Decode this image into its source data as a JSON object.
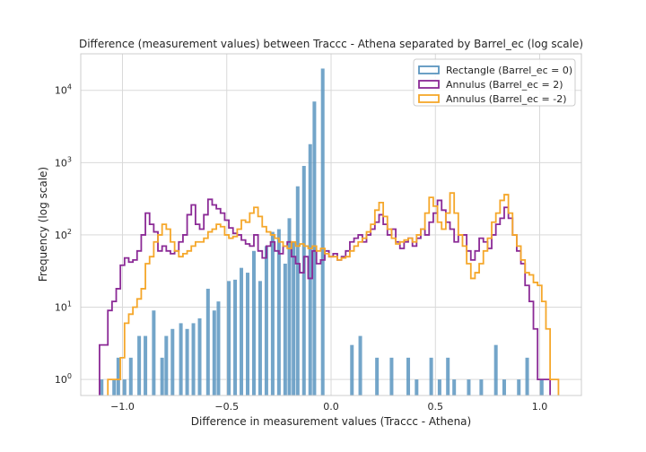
{
  "chart_data": {
    "type": "bar",
    "title": "Difference (measurement values) between Traccc - Athena separated by Barrel_ec (log scale)",
    "xlabel": "Difference in measurement values (Traccc - Athena)",
    "ylabel": "Frequency (log scale)",
    "xlim": [
      -1.2,
      1.2
    ],
    "ylim": [
      0.6,
      32000
    ],
    "yscale": "log",
    "grid": true,
    "legend_position": "top-right",
    "x_ticks": [
      {
        "value": -1.0,
        "label": "−1.0"
      },
      {
        "value": -0.5,
        "label": "−0.5"
      },
      {
        "value": 0.0,
        "label": "0.0"
      },
      {
        "value": 0.5,
        "label": "0.5"
      },
      {
        "value": 1.0,
        "label": "1.0"
      }
    ],
    "y_ticks": [
      {
        "value": 1,
        "base": "10",
        "exp": "0"
      },
      {
        "value": 10,
        "base": "10",
        "exp": "1"
      },
      {
        "value": 100,
        "base": "10",
        "exp": "2"
      },
      {
        "value": 1000,
        "base": "10",
        "exp": "3"
      },
      {
        "value": 10000,
        "base": "10",
        "exp": "4"
      }
    ],
    "series": [
      {
        "name": "Rectangle (Barrel_ec = 0)",
        "style": "bar",
        "color": "#5b95bf",
        "points": [
          [
            -1.1,
            1
          ],
          [
            -1.04,
            1
          ],
          [
            -1.02,
            2
          ],
          [
            -0.99,
            1
          ],
          [
            -0.96,
            2
          ],
          [
            -0.92,
            4
          ],
          [
            -0.89,
            4
          ],
          [
            -0.85,
            9
          ],
          [
            -0.81,
            2
          ],
          [
            -0.79,
            4
          ],
          [
            -0.76,
            5
          ],
          [
            -0.72,
            6
          ],
          [
            -0.69,
            5
          ],
          [
            -0.66,
            6
          ],
          [
            -0.63,
            7
          ],
          [
            -0.59,
            18
          ],
          [
            -0.56,
            9
          ],
          [
            -0.54,
            12
          ],
          [
            -0.49,
            23
          ],
          [
            -0.46,
            24
          ],
          [
            -0.43,
            35
          ],
          [
            -0.4,
            30
          ],
          [
            -0.37,
            60
          ],
          [
            -0.34,
            23
          ],
          [
            -0.31,
            70
          ],
          [
            -0.28,
            110
          ],
          [
            -0.25,
            120
          ],
          [
            -0.22,
            40
          ],
          [
            -0.2,
            170
          ],
          [
            -0.18,
            80
          ],
          [
            -0.16,
            470
          ],
          [
            -0.13,
            900
          ],
          [
            -0.1,
            1800
          ],
          [
            -0.08,
            7000
          ],
          [
            -0.04,
            20000
          ],
          [
            0.1,
            3
          ],
          [
            0.14,
            4
          ],
          [
            0.22,
            2
          ],
          [
            0.29,
            2
          ],
          [
            0.37,
            2
          ],
          [
            0.41,
            1
          ],
          [
            0.48,
            2
          ],
          [
            0.52,
            1
          ],
          [
            0.56,
            2
          ],
          [
            0.59,
            1
          ],
          [
            0.66,
            1
          ],
          [
            0.72,
            1
          ],
          [
            0.79,
            3
          ],
          [
            0.83,
            1
          ],
          [
            0.9,
            1
          ],
          [
            0.94,
            2
          ],
          [
            1.01,
            1
          ]
        ]
      },
      {
        "name": "Annulus (Barrel_ec = 2)",
        "style": "step",
        "color": "#8b2a96",
        "points": [
          [
            -1.1,
            3
          ],
          [
            -1.08,
            3
          ],
          [
            -1.06,
            9
          ],
          [
            -1.04,
            12
          ],
          [
            -1.02,
            18
          ],
          [
            -1.0,
            38
          ],
          [
            -0.98,
            48
          ],
          [
            -0.96,
            42
          ],
          [
            -0.94,
            45
          ],
          [
            -0.92,
            60
          ],
          [
            -0.9,
            100
          ],
          [
            -0.88,
            200
          ],
          [
            -0.86,
            140
          ],
          [
            -0.84,
            110
          ],
          [
            -0.82,
            60
          ],
          [
            -0.8,
            70
          ],
          [
            -0.78,
            60
          ],
          [
            -0.76,
            55
          ],
          [
            -0.74,
            60
          ],
          [
            -0.72,
            80
          ],
          [
            -0.7,
            100
          ],
          [
            -0.68,
            190
          ],
          [
            -0.66,
            260
          ],
          [
            -0.64,
            140
          ],
          [
            -0.62,
            120
          ],
          [
            -0.6,
            190
          ],
          [
            -0.58,
            310
          ],
          [
            -0.56,
            260
          ],
          [
            -0.54,
            230
          ],
          [
            -0.52,
            200
          ],
          [
            -0.5,
            160
          ],
          [
            -0.48,
            125
          ],
          [
            -0.46,
            105
          ],
          [
            -0.44,
            100
          ],
          [
            -0.42,
            85
          ],
          [
            -0.4,
            75
          ],
          [
            -0.38,
            70
          ],
          [
            -0.36,
            100
          ],
          [
            -0.34,
            60
          ],
          [
            -0.32,
            48
          ],
          [
            -0.3,
            70
          ],
          [
            -0.28,
            80
          ],
          [
            -0.26,
            60
          ],
          [
            -0.24,
            55
          ],
          [
            -0.22,
            70
          ],
          [
            -0.2,
            80
          ],
          [
            -0.18,
            50
          ],
          [
            -0.16,
            40
          ],
          [
            -0.14,
            30
          ],
          [
            -0.12,
            50
          ],
          [
            -0.1,
            25
          ],
          [
            -0.08,
            60
          ],
          [
            -0.06,
            40
          ],
          [
            -0.04,
            45
          ],
          [
            -0.02,
            60
          ],
          [
            0.0,
            50
          ],
          [
            0.02,
            55
          ],
          [
            0.04,
            45
          ],
          [
            0.06,
            50
          ],
          [
            0.08,
            60
          ],
          [
            0.1,
            80
          ],
          [
            0.12,
            90
          ],
          [
            0.14,
            100
          ],
          [
            0.16,
            80
          ],
          [
            0.18,
            100
          ],
          [
            0.2,
            120
          ],
          [
            0.22,
            150
          ],
          [
            0.24,
            190
          ],
          [
            0.26,
            140
          ],
          [
            0.28,
            100
          ],
          [
            0.3,
            120
          ],
          [
            0.32,
            80
          ],
          [
            0.34,
            65
          ],
          [
            0.36,
            80
          ],
          [
            0.38,
            90
          ],
          [
            0.4,
            70
          ],
          [
            0.42,
            90
          ],
          [
            0.44,
            120
          ],
          [
            0.46,
            100
          ],
          [
            0.48,
            150
          ],
          [
            0.5,
            200
          ],
          [
            0.52,
            300
          ],
          [
            0.54,
            220
          ],
          [
            0.56,
            150
          ],
          [
            0.58,
            120
          ],
          [
            0.6,
            80
          ],
          [
            0.62,
            100
          ],
          [
            0.64,
            100
          ],
          [
            0.66,
            60
          ],
          [
            0.68,
            45
          ],
          [
            0.7,
            60
          ],
          [
            0.72,
            90
          ],
          [
            0.74,
            80
          ],
          [
            0.76,
            65
          ],
          [
            0.78,
            100
          ],
          [
            0.8,
            140
          ],
          [
            0.82,
            170
          ],
          [
            0.84,
            240
          ],
          [
            0.86,
            170
          ],
          [
            0.88,
            100
          ],
          [
            0.9,
            60
          ],
          [
            0.92,
            40
          ],
          [
            0.94,
            20
          ],
          [
            0.96,
            12
          ],
          [
            0.98,
            5
          ],
          [
            1.0,
            1
          ],
          [
            1.02,
            1
          ],
          [
            1.04,
            1
          ]
        ]
      },
      {
        "name": "Annulus (Barrel_ec = -2)",
        "style": "step",
        "color": "#f5a72a",
        "points": [
          [
            -1.06,
            1
          ],
          [
            -1.04,
            1
          ],
          [
            -1.02,
            1
          ],
          [
            -1.0,
            2
          ],
          [
            -0.98,
            6
          ],
          [
            -0.96,
            8
          ],
          [
            -0.94,
            10
          ],
          [
            -0.92,
            13
          ],
          [
            -0.9,
            18
          ],
          [
            -0.88,
            40
          ],
          [
            -0.86,
            50
          ],
          [
            -0.84,
            80
          ],
          [
            -0.82,
            100
          ],
          [
            -0.8,
            140
          ],
          [
            -0.78,
            120
          ],
          [
            -0.76,
            80
          ],
          [
            -0.74,
            60
          ],
          [
            -0.72,
            50
          ],
          [
            -0.7,
            55
          ],
          [
            -0.68,
            60
          ],
          [
            -0.66,
            70
          ],
          [
            -0.64,
            80
          ],
          [
            -0.62,
            80
          ],
          [
            -0.6,
            90
          ],
          [
            -0.58,
            110
          ],
          [
            -0.56,
            120
          ],
          [
            -0.54,
            140
          ],
          [
            -0.52,
            130
          ],
          [
            -0.5,
            100
          ],
          [
            -0.48,
            90
          ],
          [
            -0.46,
            95
          ],
          [
            -0.44,
            120
          ],
          [
            -0.42,
            160
          ],
          [
            -0.4,
            150
          ],
          [
            -0.38,
            200
          ],
          [
            -0.36,
            240
          ],
          [
            -0.34,
            180
          ],
          [
            -0.32,
            130
          ],
          [
            -0.3,
            110
          ],
          [
            -0.28,
            100
          ],
          [
            -0.26,
            90
          ],
          [
            -0.24,
            80
          ],
          [
            -0.22,
            70
          ],
          [
            -0.2,
            65
          ],
          [
            -0.18,
            80
          ],
          [
            -0.16,
            70
          ],
          [
            -0.14,
            75
          ],
          [
            -0.12,
            70
          ],
          [
            -0.1,
            65
          ],
          [
            -0.08,
            70
          ],
          [
            -0.06,
            60
          ],
          [
            -0.04,
            65
          ],
          [
            -0.02,
            55
          ],
          [
            0.0,
            50
          ],
          [
            0.02,
            50
          ],
          [
            0.04,
            45
          ],
          [
            0.06,
            48
          ],
          [
            0.08,
            50
          ],
          [
            0.1,
            60
          ],
          [
            0.12,
            70
          ],
          [
            0.14,
            80
          ],
          [
            0.16,
            90
          ],
          [
            0.18,
            110
          ],
          [
            0.2,
            140
          ],
          [
            0.22,
            220
          ],
          [
            0.24,
            280
          ],
          [
            0.26,
            180
          ],
          [
            0.28,
            120
          ],
          [
            0.3,
            90
          ],
          [
            0.32,
            75
          ],
          [
            0.34,
            80
          ],
          [
            0.36,
            85
          ],
          [
            0.38,
            90
          ],
          [
            0.4,
            80
          ],
          [
            0.42,
            100
          ],
          [
            0.44,
            120
          ],
          [
            0.46,
            200
          ],
          [
            0.48,
            330
          ],
          [
            0.5,
            250
          ],
          [
            0.52,
            150
          ],
          [
            0.54,
            120
          ],
          [
            0.56,
            200
          ],
          [
            0.58,
            380
          ],
          [
            0.6,
            200
          ],
          [
            0.62,
            100
          ],
          [
            0.64,
            70
          ],
          [
            0.66,
            40
          ],
          [
            0.68,
            25
          ],
          [
            0.7,
            30
          ],
          [
            0.72,
            40
          ],
          [
            0.74,
            60
          ],
          [
            0.76,
            90
          ],
          [
            0.78,
            150
          ],
          [
            0.8,
            200
          ],
          [
            0.82,
            300
          ],
          [
            0.84,
            360
          ],
          [
            0.86,
            200
          ],
          [
            0.88,
            100
          ],
          [
            0.9,
            70
          ],
          [
            0.92,
            45
          ],
          [
            0.94,
            30
          ],
          [
            0.96,
            28
          ],
          [
            0.98,
            22
          ],
          [
            1.0,
            20
          ],
          [
            1.02,
            12
          ],
          [
            1.04,
            5
          ],
          [
            1.06,
            1
          ],
          [
            1.08,
            1
          ]
        ]
      }
    ]
  }
}
